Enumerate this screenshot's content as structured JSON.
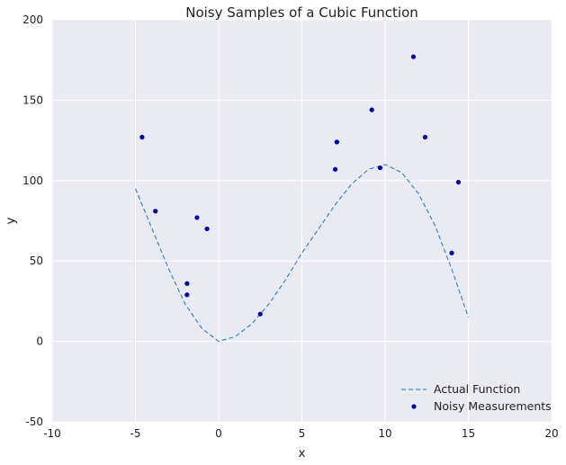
{
  "chart_data": {
    "type": "scatter",
    "title": "Noisy Samples of a Cubic Function",
    "xlabel": "x",
    "ylabel": "y",
    "xlim": [
      -10,
      20
    ],
    "ylim": [
      -50,
      200
    ],
    "x_ticks": [
      -10,
      -5,
      0,
      5,
      10,
      15,
      20
    ],
    "y_ticks": [
      -50,
      0,
      50,
      100,
      150,
      200
    ],
    "grid": true,
    "legend_position": "lower-right",
    "colors": {
      "background": "#eaeaf2",
      "grid": "#ffffff",
      "line": "#1f77b4",
      "points": "#0000aa"
    },
    "series": [
      {
        "name": "Actual Function",
        "kind": "line",
        "style": "dashed",
        "x": [
          -5,
          -4,
          -3,
          -2,
          -1,
          0,
          1,
          2,
          3,
          4,
          5,
          6,
          7,
          8,
          9,
          10,
          11,
          12,
          13,
          14,
          15
        ],
        "y": [
          95,
          70,
          45,
          23,
          8,
          0,
          3,
          11,
          23,
          38,
          55,
          70,
          85,
          98,
          107,
          110,
          105,
          92,
          72,
          45,
          15
        ]
      },
      {
        "name": "Noisy Measurements",
        "kind": "scatter",
        "x": [
          -4.6,
          -3.8,
          -1.9,
          -1.9,
          -1.3,
          -0.7,
          2.5,
          7.0,
          7.1,
          9.2,
          9.7,
          11.7,
          12.4,
          14.0,
          14.4
        ],
        "y": [
          127,
          81,
          36,
          29,
          77,
          70,
          17,
          107,
          124,
          144,
          108,
          177,
          127,
          55,
          99
        ]
      }
    ]
  }
}
